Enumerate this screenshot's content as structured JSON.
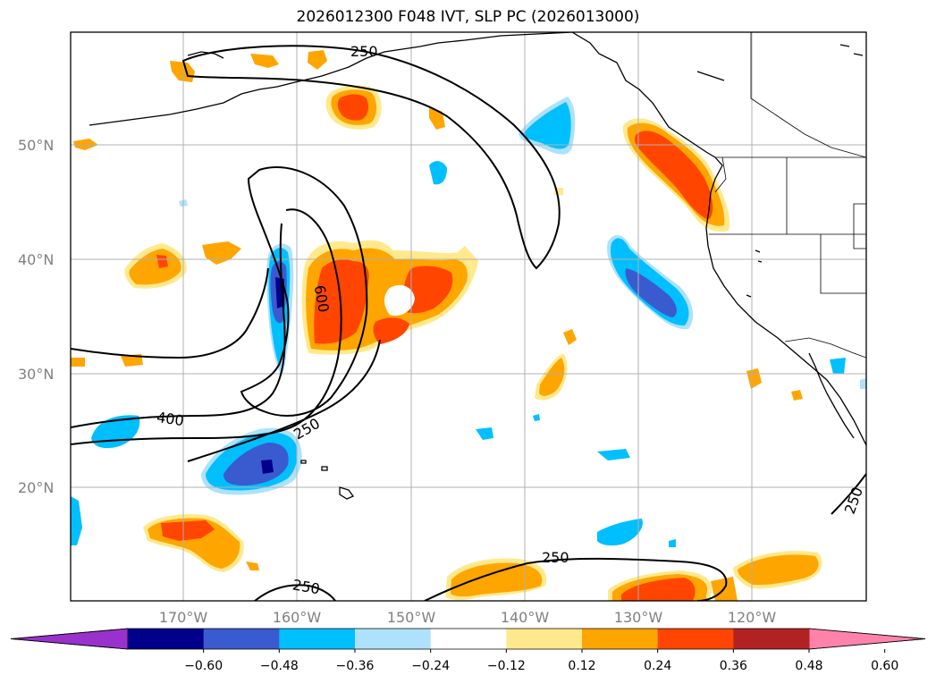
{
  "title": "2026012300 F048 IVT, SLP PC (2026013000)",
  "lat_labels": [
    "50°N",
    "40°N",
    "30°N",
    "20°N"
  ],
  "lon_labels": [
    "170°W",
    "160°W",
    "150°W",
    "140°W",
    "130°W",
    "120°W"
  ],
  "contour_labels": [
    "250",
    "600",
    "400",
    "250",
    "250",
    "250",
    "250"
  ],
  "colorbar": {
    "ticks": [
      "−0.60",
      "−0.48",
      "−0.36",
      "−0.24",
      "−0.12",
      "0.12",
      "0.24",
      "0.36",
      "0.48",
      "0.60"
    ],
    "colors": [
      "#9932CC",
      "#00008B",
      "#3A5BD0",
      "#00BFFF",
      "#ADE2FA",
      "#FFFFFF",
      "#FFE98C",
      "#FFA500",
      "#FF4500",
      "#B22222",
      "#FF82AB"
    ]
  },
  "legend_colors": {
    "land_line": "#000000",
    "grid": "#b0b0b0"
  }
}
